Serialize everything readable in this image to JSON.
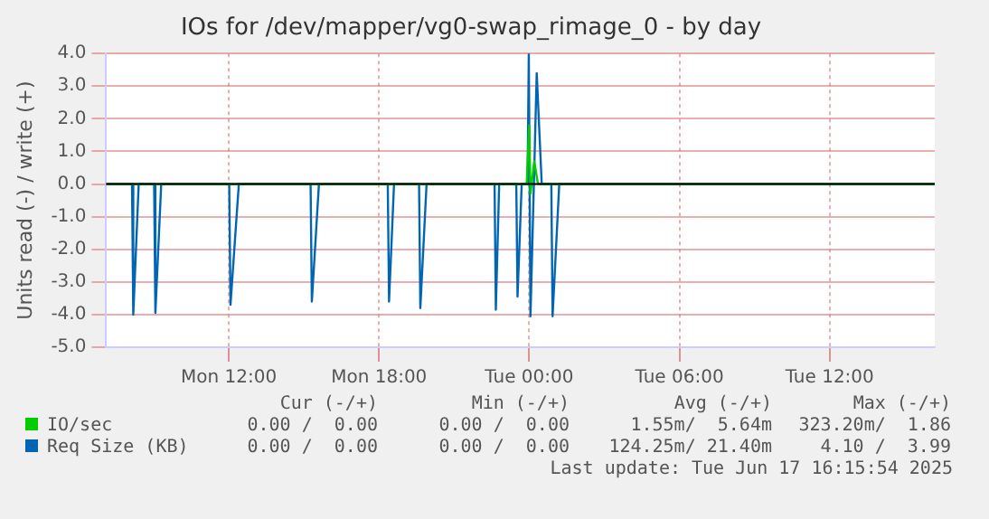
{
  "chart_data": {
    "type": "line",
    "title": "IOs for /dev/mapper/vg0-swap_rimage_0 - by day",
    "ylabel": "Units read (-) / write (+)",
    "series": [
      {
        "name": "IO/sec",
        "color": "#00cc00",
        "x": [
          "2025-06-16T07:06",
          "2025-06-16T23:54",
          "2025-06-17T00:00",
          "2025-06-17T00:03",
          "2025-06-17T00:12",
          "2025-06-17T00:21",
          "2025-06-17T16:12"
        ],
        "values": [
          0,
          0,
          1.8,
          -0.3,
          0.7,
          0,
          0
        ]
      },
      {
        "name": "Req Size (KB)",
        "color": "#0066b3",
        "x": [
          "2025-06-16T07:06",
          "2025-06-16T08:08",
          "2025-06-16T08:11",
          "2025-06-16T08:24",
          "2025-06-16T09:01",
          "2025-06-16T09:04",
          "2025-06-16T09:18",
          "2025-06-16T12:01",
          "2025-06-16T12:04",
          "2025-06-16T12:24",
          "2025-06-16T15:16",
          "2025-06-16T15:19",
          "2025-06-16T15:36",
          "2025-06-16T18:21",
          "2025-06-16T18:24",
          "2025-06-16T18:36",
          "2025-06-16T19:36",
          "2025-06-16T19:39",
          "2025-06-16T19:54",
          "2025-06-16T22:37",
          "2025-06-16T22:40",
          "2025-06-16T22:48",
          "2025-06-16T23:29",
          "2025-06-16T23:32",
          "2025-06-16T23:42",
          "2025-06-16T23:56",
          "2025-06-16T23:59",
          "2025-06-17T00:03",
          "2025-06-17T00:18",
          "2025-06-17T00:30",
          "2025-06-17T00:53",
          "2025-06-17T00:56",
          "2025-06-17T01:12",
          "2025-06-17T16:12"
        ],
        "values": [
          0,
          0,
          -4.0,
          0,
          0,
          -3.95,
          0,
          0,
          -3.7,
          0,
          0,
          -3.6,
          0,
          0,
          -3.6,
          0,
          0,
          -3.8,
          0,
          0,
          -3.85,
          0,
          0,
          -3.45,
          0,
          0,
          4.0,
          -4.05,
          3.4,
          0,
          0,
          -4.05,
          0,
          0
        ]
      }
    ],
    "xlim": [
      "2025-06-16T07:06",
      "2025-06-17T16:12"
    ],
    "xticks": [
      {
        "value": "2025-06-16T12:00",
        "label": "Mon 12:00"
      },
      {
        "value": "2025-06-16T18:00",
        "label": "Mon 18:00"
      },
      {
        "value": "2025-06-17T00:00",
        "label": "Tue 00:00"
      },
      {
        "value": "2025-06-17T06:00",
        "label": "Tue 06:00"
      },
      {
        "value": "2025-06-17T12:00",
        "label": "Tue 12:00"
      }
    ],
    "ylim": [
      -5,
      4
    ],
    "yticks": [
      {
        "value": -5,
        "label": "-5.0"
      },
      {
        "value": -4,
        "label": "-4.0"
      },
      {
        "value": -3,
        "label": "-3.0"
      },
      {
        "value": -2,
        "label": "-2.0"
      },
      {
        "value": -1,
        "label": "-1.0"
      },
      {
        "value": 0,
        "label": "0.0"
      },
      {
        "value": 1,
        "label": "1.0"
      },
      {
        "value": 2,
        "label": "2.0"
      },
      {
        "value": 3,
        "label": "3.0"
      },
      {
        "value": 4,
        "label": "4.0"
      }
    ],
    "grid": true,
    "legend": "bottom",
    "marker": "none",
    "line_style": "solid",
    "ref_lines": [
      {
        "axis": "y",
        "value": 0,
        "color": "#000000"
      }
    ],
    "annotations": [
      "Cur (-/+)",
      "Min (-/+)",
      "Avg (-/+)",
      "Max (-/+)",
      "0.00 /  0.00",
      "0.00 /  0.00",
      "1.55m/  5.64m",
      "323.20m/  1.86",
      "0.00 /  0.00",
      "0.00 /  0.00",
      "124.25m/ 21.40m",
      "4.10 /  3.99",
      "Last update: Tue Jun 17 16:15:54 2025"
    ]
  }
}
